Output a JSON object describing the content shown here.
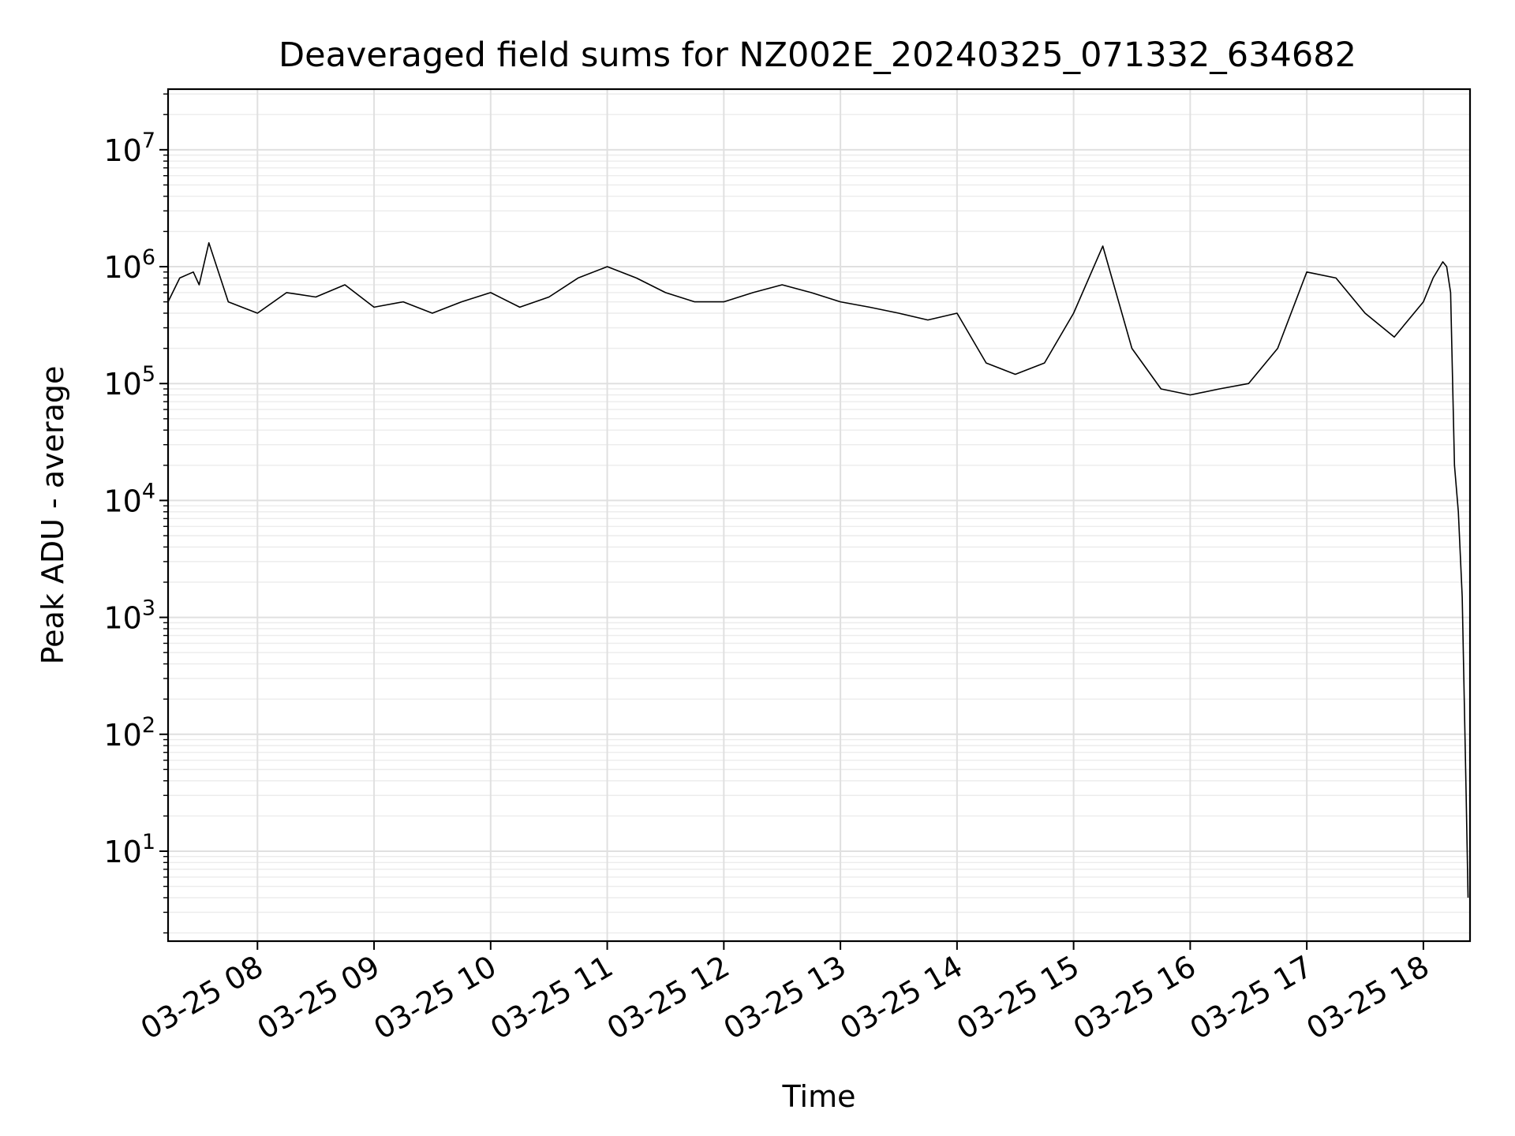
{
  "chart_data": {
    "type": "line",
    "title": "Deaveraged field sums for NZ002E_20240325_071332_634682",
    "xlabel": "Time",
    "ylabel": "Peak ADU - average",
    "yscale": "log",
    "ylim": [
      1.7,
      33000000
    ],
    "xlim": [
      "03-25 07:14",
      "03-25 18:24"
    ],
    "grid": true,
    "legend": "none",
    "x_ticks": [
      "03-25 08:00",
      "03-25 09:00",
      "03-25 10:00",
      "03-25 11:00",
      "03-25 12:00",
      "03-25 13:00",
      "03-25 14:00",
      "03-25 15:00",
      "03-25 16:00",
      "03-25 17:00",
      "03-25 18:00"
    ],
    "x_tick_labels": [
      "03-25 08",
      "03-25 09",
      "03-25 10",
      "03-25 11",
      "03-25 12",
      "03-25 13",
      "03-25 14",
      "03-25 15",
      "03-25 16",
      "03-25 17",
      "03-25 18"
    ],
    "y_ticks": [
      10,
      100,
      1000,
      10000,
      100000,
      1000000,
      10000000
    ],
    "y_tick_exponents": [
      "1",
      "2",
      "3",
      "4",
      "5",
      "6",
      "7"
    ],
    "y_tick_base": "10",
    "series": [
      {
        "color": "#000000",
        "x": [
          "03-25 07:14",
          "03-25 07:20",
          "03-25 07:27",
          "03-25 07:30",
          "03-25 07:35",
          "03-25 07:45",
          "03-25 08:00",
          "03-25 08:15",
          "03-25 08:30",
          "03-25 08:45",
          "03-25 09:00",
          "03-25 09:15",
          "03-25 09:30",
          "03-25 09:45",
          "03-25 10:00",
          "03-25 10:15",
          "03-25 10:30",
          "03-25 10:45",
          "03-25 11:00",
          "03-25 11:15",
          "03-25 11:30",
          "03-25 11:45",
          "03-25 12:00",
          "03-25 12:15",
          "03-25 12:30",
          "03-25 12:45",
          "03-25 13:00",
          "03-25 13:15",
          "03-25 13:30",
          "03-25 13:45",
          "03-25 14:00",
          "03-25 14:15",
          "03-25 14:30",
          "03-25 14:45",
          "03-25 15:00",
          "03-25 15:15",
          "03-25 15:30",
          "03-25 15:45",
          "03-25 16:00",
          "03-25 16:15",
          "03-25 16:30",
          "03-25 16:45",
          "03-25 17:00",
          "03-25 17:15",
          "03-25 17:30",
          "03-25 17:45",
          "03-25 18:00",
          "03-25 18:05",
          "03-25 18:10",
          "03-25 18:12",
          "03-25 18:14",
          "03-25 18:16",
          "03-25 18:18",
          "03-25 18:20",
          "03-25 18:22",
          "03-25 18:23"
        ],
        "y": [
          500000,
          800000,
          900000,
          700000,
          1600000,
          500000,
          400000,
          600000,
          550000,
          700000,
          450000,
          500000,
          400000,
          500000,
          600000,
          450000,
          550000,
          800000,
          1000000,
          800000,
          600000,
          500000,
          500000,
          600000,
          700000,
          600000,
          500000,
          450000,
          400000,
          350000,
          400000,
          150000,
          120000,
          150000,
          400000,
          1500000,
          200000,
          90000,
          80000,
          90000,
          100000,
          200000,
          900000,
          800000,
          400000,
          250000,
          500000,
          800000,
          1100000,
          1000000,
          600000,
          20000,
          8000,
          1500,
          30,
          4
        ]
      }
    ]
  }
}
